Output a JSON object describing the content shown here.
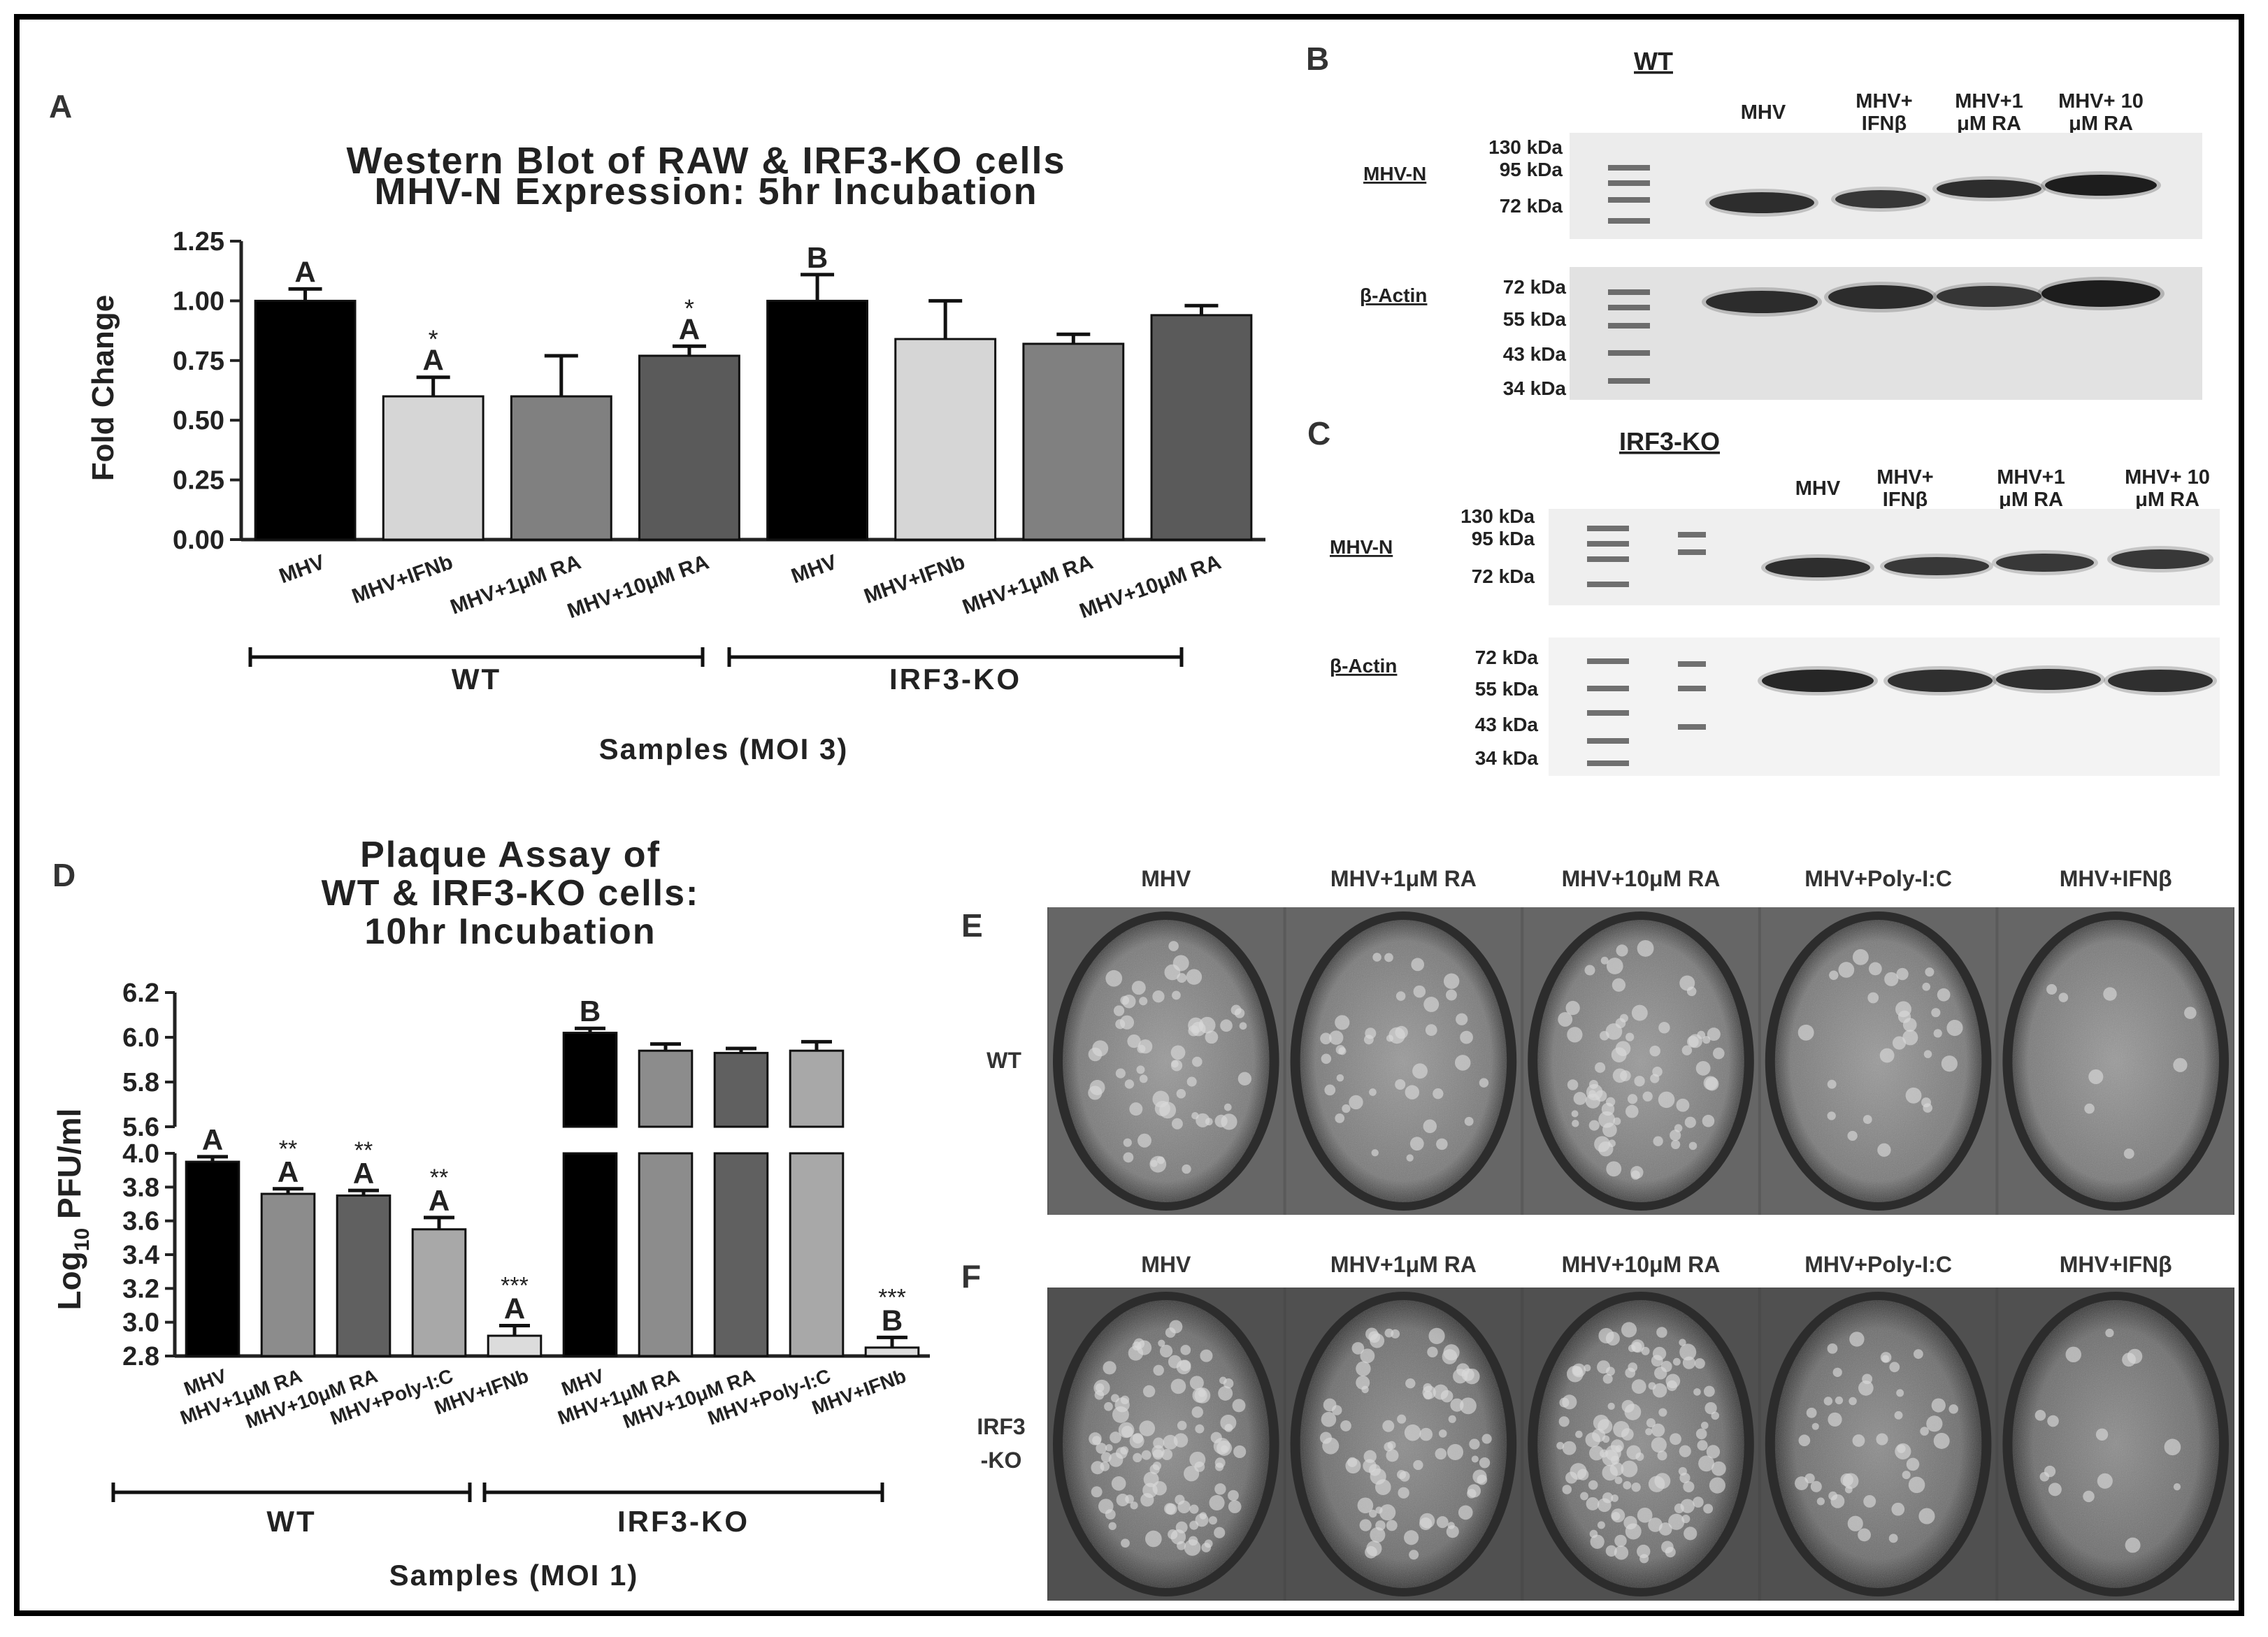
{
  "panels": {
    "a": "A",
    "b": "B",
    "c": "C",
    "d": "D",
    "e": "E",
    "f": "F"
  },
  "chart_data": [
    {
      "id": "A",
      "type": "bar",
      "title": "Western Blot of RAW & IRF3-KO cells",
      "subtitle": "MHV-N Expression: 5hr Incubation",
      "ylabel": "Fold Change",
      "xlabel": "Samples (MOI 3)",
      "ylim": [
        0,
        1.25
      ],
      "yticks": [
        "0.00",
        "0.25",
        "0.50",
        "0.75",
        "1.00",
        "1.25"
      ],
      "categories": [
        "MHV",
        "MHV+IFNb",
        "MHV+1μM RA",
        "MHV+10μM RA",
        "MHV",
        "MHV+IFNb",
        "MHV+1μM RA",
        "MHV+10μM RA"
      ],
      "values": [
        1.0,
        0.6,
        0.6,
        0.77,
        1.0,
        0.84,
        0.82,
        0.94
      ],
      "errors": [
        0.05,
        0.08,
        0.17,
        0.04,
        0.11,
        0.16,
        0.04,
        0.04
      ],
      "letters": [
        "A",
        "A",
        "",
        "A",
        "B",
        "",
        "",
        ""
      ],
      "stars": [
        "",
        "*",
        "",
        "*",
        "",
        "",
        "",
        ""
      ],
      "colors": [
        "#000000",
        "#d6d6d6",
        "#808080",
        "#5a5a5a",
        "#000000",
        "#d6d6d6",
        "#808080",
        "#5a5a5a"
      ],
      "groups": [
        {
          "name": "WT"
        },
        {
          "name": "IRF3-KO"
        }
      ]
    },
    {
      "id": "D",
      "type": "bar",
      "title": "Plaque Assay of",
      "subtitle": "WT & IRF3-KO cells:",
      "subtitle2": "10hr Incubation",
      "ylabel": "Log10 PFU/ml",
      "xlabel": "Samples (MOI 1)",
      "ylim_lower": [
        2.8,
        4.0
      ],
      "ylim_upper": [
        5.6,
        6.2
      ],
      "yticks_lower": [
        "2.8",
        "3.0",
        "3.2",
        "3.4",
        "3.6",
        "3.8",
        "4.0"
      ],
      "yticks_upper": [
        "5.6",
        "5.8",
        "6.0",
        "6.2"
      ],
      "categories": [
        "MHV",
        "MHV+1μM RA",
        "MHV+10μM RA",
        "MHV+Poly-I:C",
        "MHV+IFNb",
        "MHV",
        "MHV+1μM RA",
        "MHV+10μM RA",
        "MHV+Poly-I:C",
        "MHV+IFNb"
      ],
      "values": [
        3.95,
        3.76,
        3.75,
        3.55,
        2.92,
        6.02,
        5.94,
        5.93,
        5.94,
        2.85
      ],
      "errors": [
        0.03,
        0.03,
        0.03,
        0.07,
        0.06,
        0.02,
        0.03,
        0.02,
        0.04,
        0.06
      ],
      "letters": [
        "A",
        "A",
        "A",
        "A",
        "A",
        "B",
        "",
        "",
        "",
        "B"
      ],
      "stars": [
        "",
        "**",
        "**",
        "**",
        "***",
        "",
        "",
        "",
        "",
        "***"
      ],
      "colors": [
        "#000000",
        "#8c8c8c",
        "#606060",
        "#a8a8a8",
        "#dcdcdc",
        "#000000",
        "#8c8c8c",
        "#606060",
        "#a8a8a8",
        "#dcdcdc"
      ],
      "groups": [
        {
          "name": "WT"
        },
        {
          "name": "IRF3-KO"
        }
      ]
    }
  ],
  "blot_b": {
    "header": "WT",
    "lanes": [
      "MHV",
      "MHV+\nIFNβ",
      "MHV+1\nμM RA",
      "MHV+ 10\nμM RA"
    ],
    "rows": [
      "MHV-N",
      "β-Actin"
    ],
    "mw_top": [
      "130 kDa",
      "95 kDa",
      "72 kDa"
    ],
    "mw_bottom": [
      "72 kDa",
      "55 kDa",
      "43 kDa",
      "34 kDa"
    ]
  },
  "blot_c": {
    "header": "IRF3-KO",
    "lanes": [
      "MHV",
      "MHV+\nIFNβ",
      "MHV+1\nμM RA",
      "MHV+ 10\nμM RA"
    ],
    "rows": [
      "MHV-N",
      "β-Actin"
    ],
    "mw_top": [
      "130 kDa",
      "95 kDa",
      "72 kDa"
    ],
    "mw_bottom": [
      "72 kDa",
      "55 kDa",
      "43 kDa",
      "34 kDa"
    ]
  },
  "plates": {
    "columns": [
      "MHV",
      "MHV+1μM RA",
      "MHV+10μM RA",
      "MHV+Poly-I:C",
      "MHV+IFNβ"
    ],
    "row_e": "WT",
    "row_f": "IRF3\n-KO"
  }
}
